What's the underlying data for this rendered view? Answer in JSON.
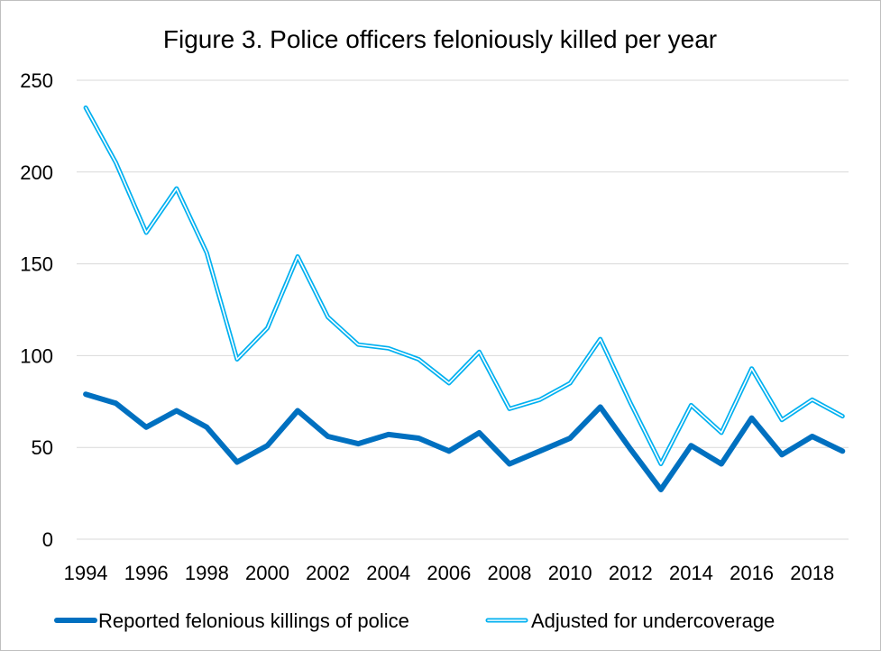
{
  "chart_data": {
    "type": "line",
    "title": "Figure 3. Police officers feloniously killed per year",
    "xlabel": "",
    "ylabel": "",
    "ylim": [
      0,
      250
    ],
    "y_ticks": [
      0,
      50,
      100,
      150,
      200,
      250
    ],
    "x": [
      1994,
      1995,
      1996,
      1997,
      1998,
      1999,
      2000,
      2001,
      2002,
      2003,
      2004,
      2005,
      2006,
      2007,
      2008,
      2009,
      2010,
      2011,
      2012,
      2013,
      2014,
      2015,
      2016,
      2017,
      2018,
      2019
    ],
    "x_tick_labels": [
      "1994",
      "1996",
      "1998",
      "2000",
      "2002",
      "2004",
      "2006",
      "2008",
      "2010",
      "2012",
      "2014",
      "2016",
      "2018"
    ],
    "grid": true,
    "legend_position": "bottom",
    "series": [
      {
        "name": "Reported felonious killings of police",
        "color": "#0070c0",
        "values": [
          79,
          74,
          61,
          70,
          61,
          42,
          51,
          70,
          56,
          52,
          57,
          55,
          48,
          58,
          41,
          48,
          55,
          72,
          49,
          27,
          51,
          41,
          66,
          46,
          56,
          48
        ]
      },
      {
        "name": "Adjusted for undercoverage",
        "color": "#00b0f0",
        "values": [
          235,
          205,
          167,
          191,
          156,
          98,
          115,
          154,
          121,
          106,
          104,
          98,
          85,
          102,
          71,
          76,
          85,
          109,
          74,
          41,
          73,
          58,
          93,
          65,
          76,
          67
        ]
      }
    ]
  }
}
